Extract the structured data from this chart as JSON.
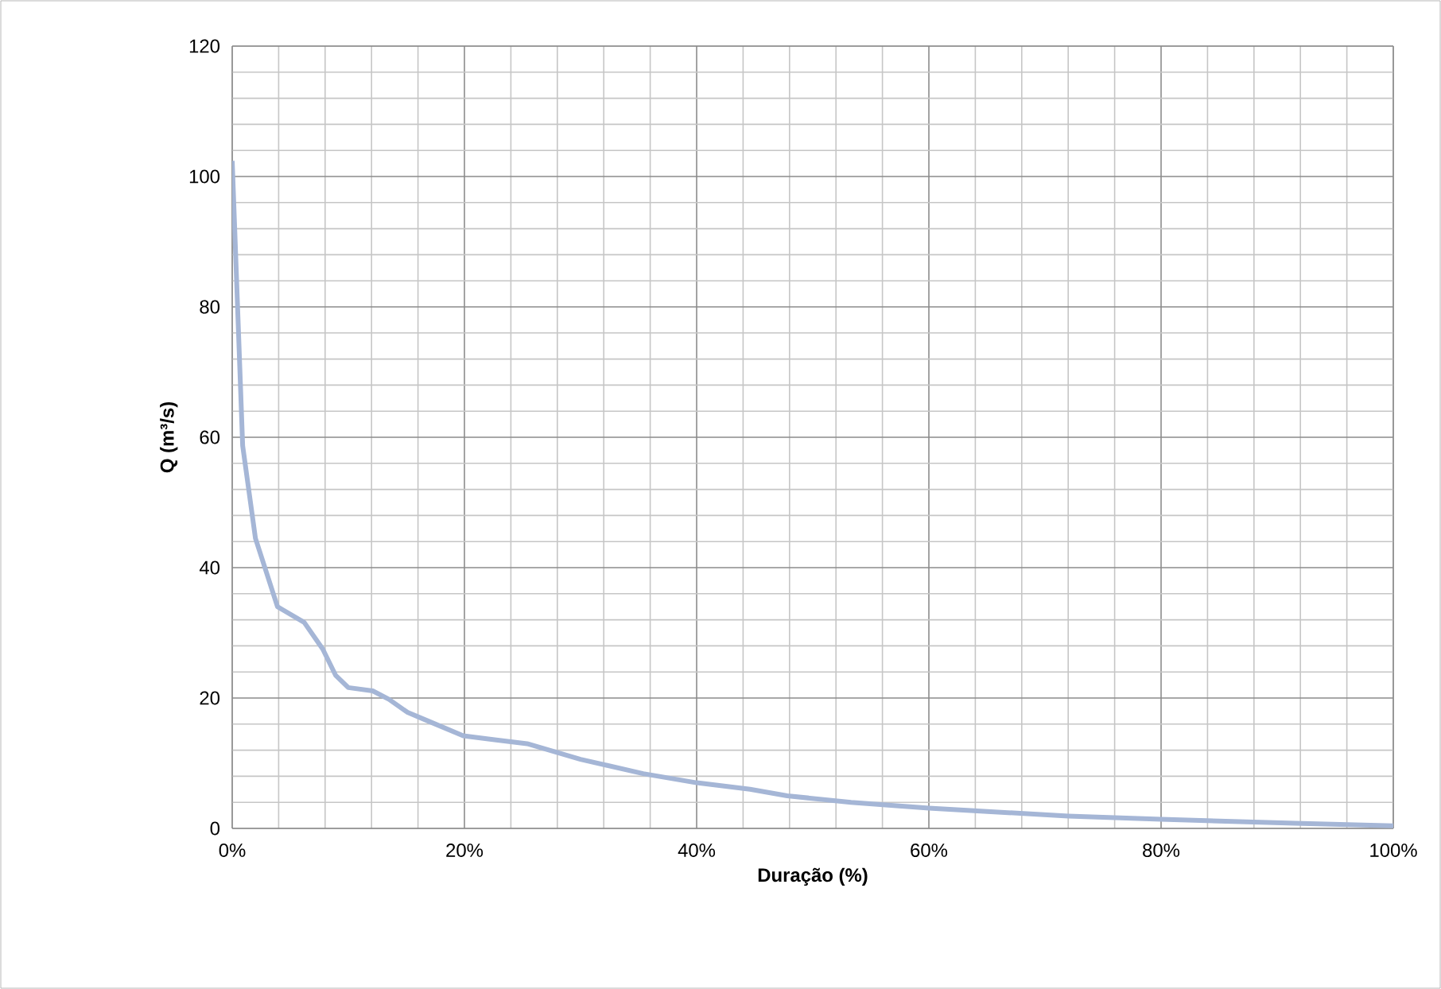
{
  "chart_data": {
    "type": "line",
    "xlabel": "Duração (%)",
    "ylabel": "Q (m³/s)",
    "x": [
      0,
      0.9,
      2.0,
      3.9,
      6.2,
      7.8,
      8.9,
      10,
      12.1,
      13.5,
      15.1,
      16.7,
      19.9,
      22.6,
      25.4,
      30,
      35.4,
      40,
      44.6,
      47.8,
      53.3,
      60,
      72,
      80,
      91.5,
      100
    ],
    "series": [
      {
        "color": "#a5b6d6",
        "values": [
          102.4,
          58.7,
          44.5,
          34,
          31.6,
          27.5,
          23.5,
          21.6,
          21.1,
          19.8,
          17.8,
          16.6,
          14.2,
          13.6,
          13.0,
          10.6,
          8.4,
          7.0,
          6.0,
          5.0,
          4.0,
          3.1,
          1.9,
          1.4,
          0.8,
          0.4
        ]
      }
    ],
    "xlim": [
      0,
      100
    ],
    "ylim": [
      0,
      120
    ],
    "xticks": [
      {
        "value": 0,
        "label": "0%"
      },
      {
        "value": 20,
        "label": "20%"
      },
      {
        "value": 40,
        "label": "40%"
      },
      {
        "value": 60,
        "label": "60%"
      },
      {
        "value": 80,
        "label": "80%"
      },
      {
        "value": 100,
        "label": "100%"
      }
    ],
    "yticks": [
      0,
      20,
      40,
      60,
      80,
      100,
      120
    ],
    "grid": true,
    "marker": "none",
    "line_style": "solid"
  }
}
